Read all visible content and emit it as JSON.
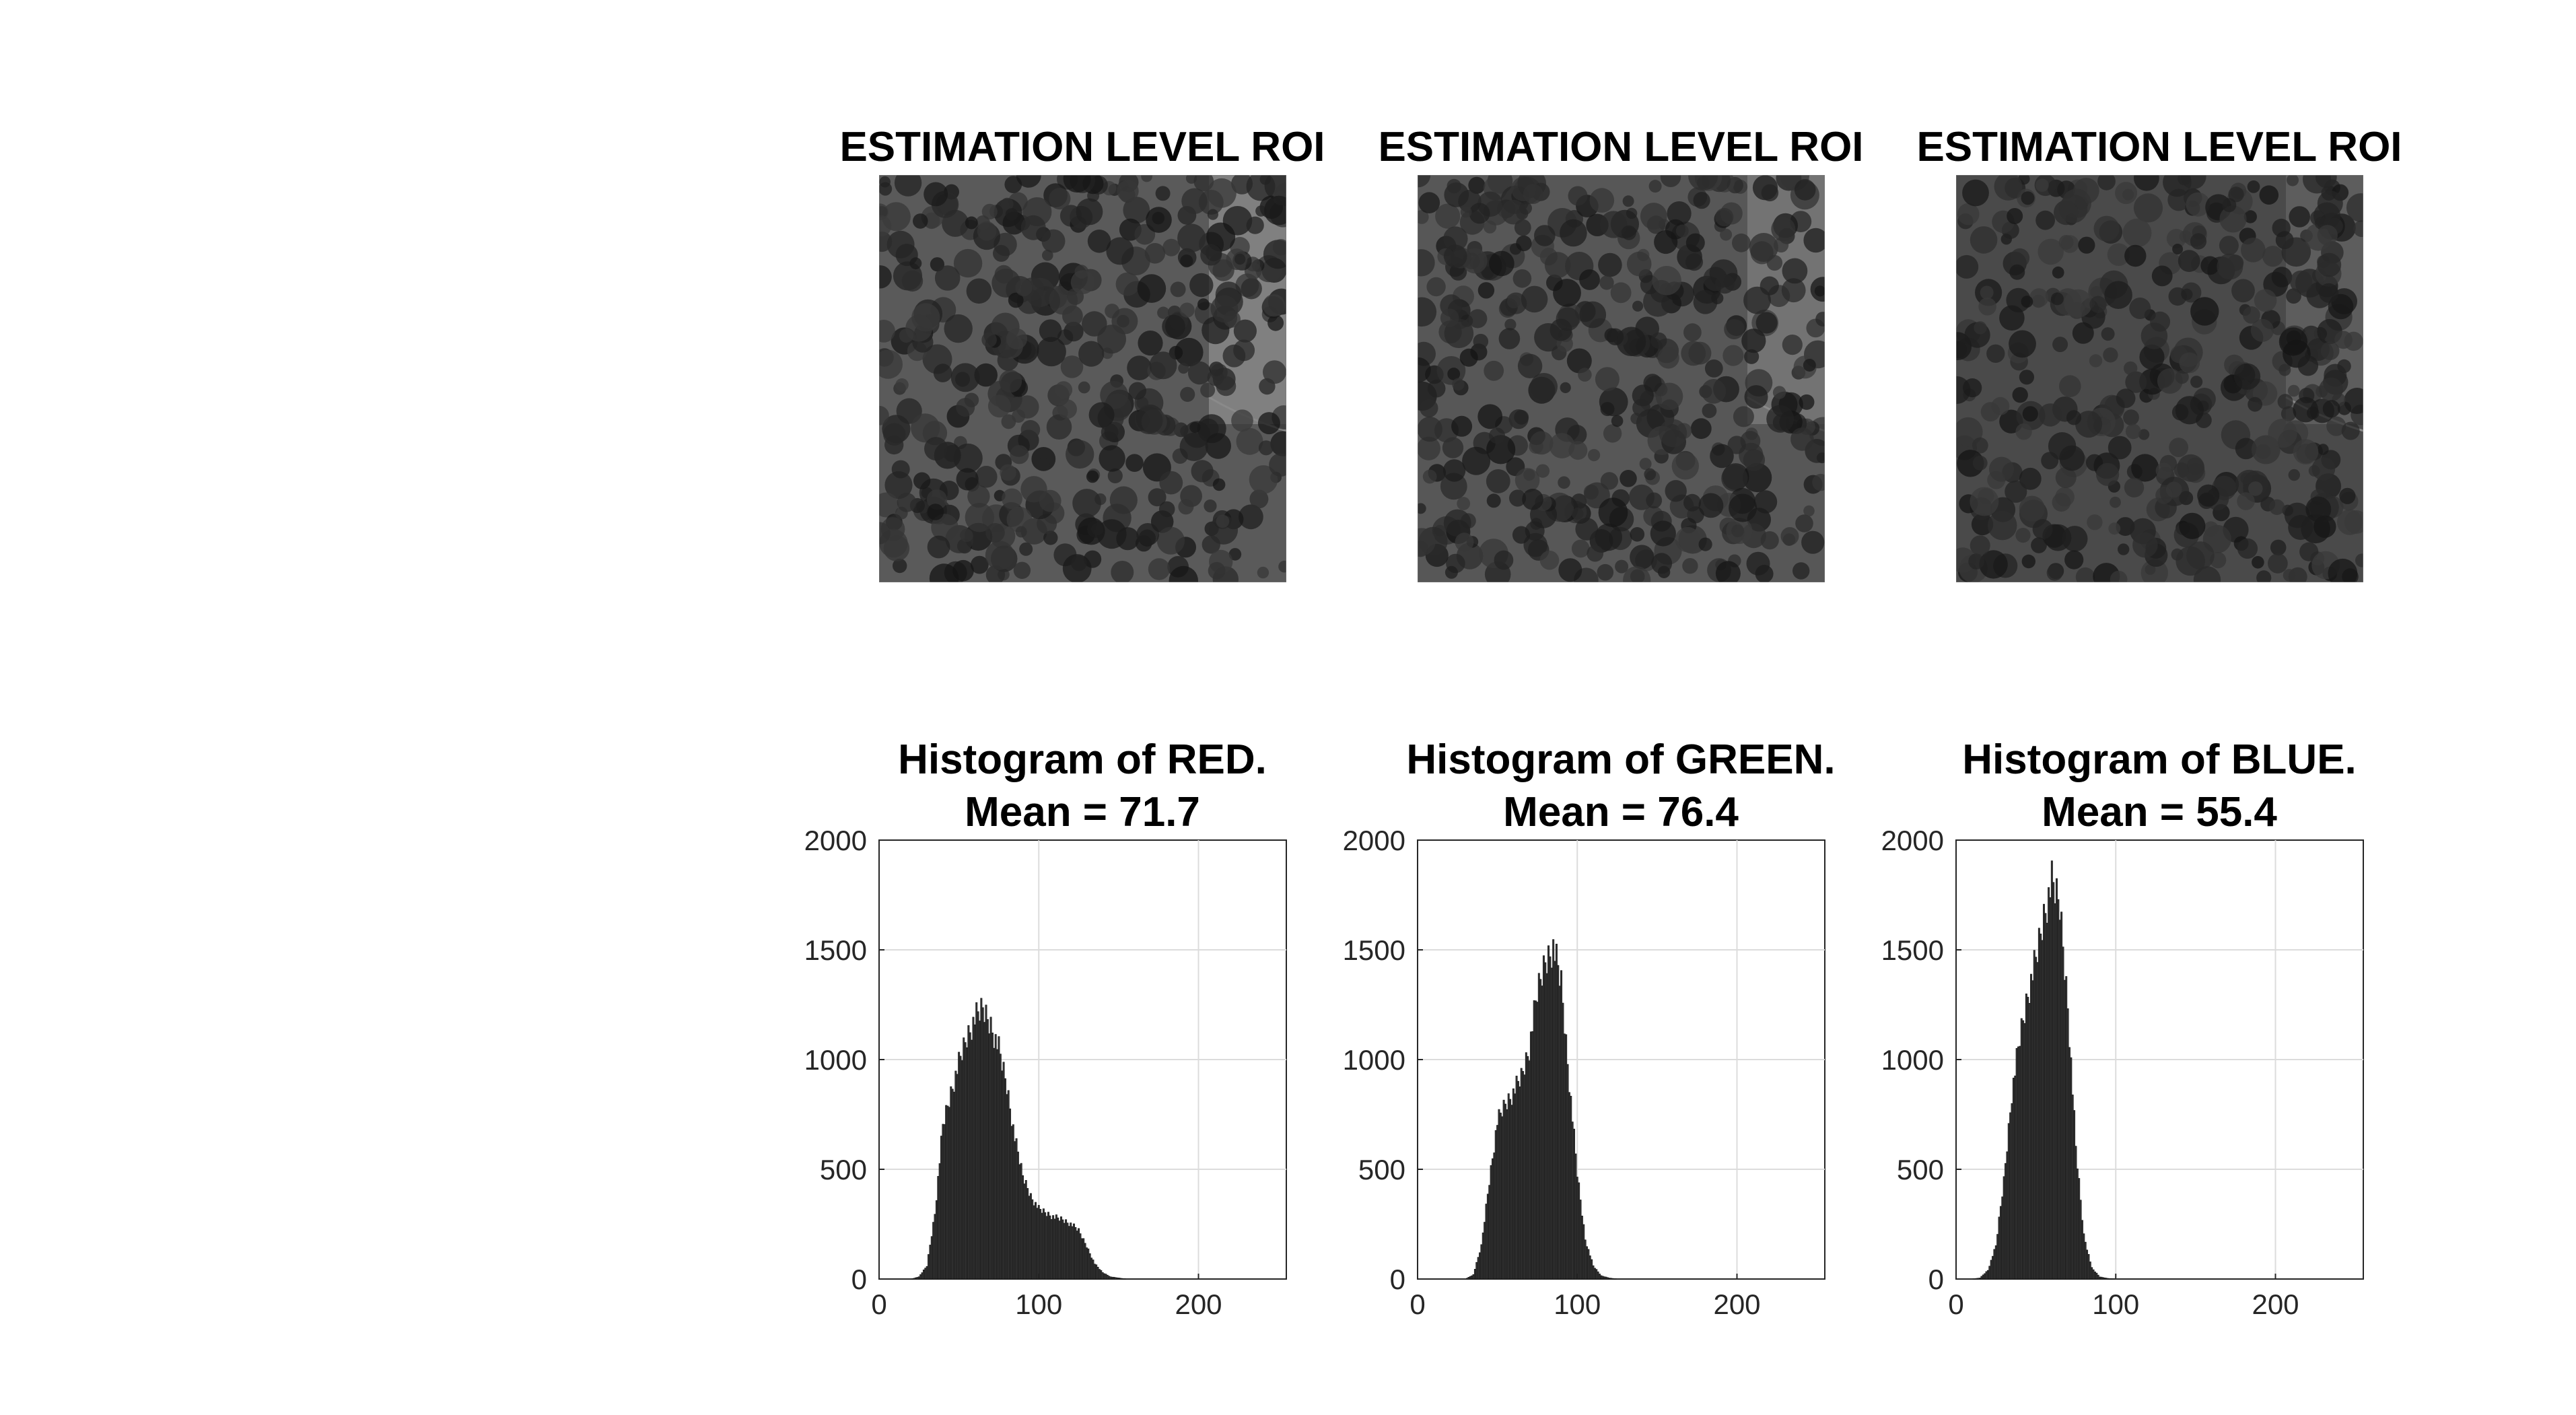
{
  "figure": {
    "roi_titles": [
      "ESTIMATION LEVEL ROI",
      "ESTIMATION LEVEL ROI",
      "ESTIMATION LEVEL ROI"
    ],
    "roi_icon": "aerial-photo-palm-trees"
  },
  "chart_data": [
    {
      "type": "bar",
      "title_line1": "Histogram of RED.",
      "title_line2": "Mean = 71.7",
      "xlim": [
        0,
        255
      ],
      "ylim": [
        0,
        2000
      ],
      "xticks": [
        0,
        100,
        200
      ],
      "yticks": [
        0,
        500,
        1000,
        1500,
        2000
      ],
      "grid": true,
      "color": "#333333",
      "x": [
        20,
        25,
        30,
        35,
        40,
        45,
        50,
        55,
        60,
        65,
        70,
        75,
        80,
        85,
        90,
        95,
        100,
        105,
        110,
        115,
        120,
        125,
        130,
        135,
        140,
        145,
        150,
        155,
        160
      ],
      "values": [
        0,
        10,
        60,
        300,
        700,
        850,
        980,
        1100,
        1180,
        1230,
        1160,
        1050,
        880,
        640,
        470,
        380,
        320,
        300,
        280,
        270,
        250,
        220,
        150,
        70,
        30,
        10,
        5,
        0,
        0
      ]
    },
    {
      "type": "bar",
      "title_line1": "Histogram of GREEN.",
      "title_line2": "Mean = 76.4",
      "xlim": [
        0,
        255
      ],
      "ylim": [
        0,
        2000
      ],
      "xticks": [
        0,
        100,
        200
      ],
      "yticks": [
        0,
        500,
        1000,
        1500,
        2000
      ],
      "grid": true,
      "color": "#333333",
      "x": [
        30,
        35,
        40,
        45,
        50,
        55,
        60,
        65,
        70,
        75,
        80,
        85,
        90,
        95,
        100,
        105,
        110,
        115,
        120,
        125
      ],
      "values": [
        0,
        20,
        150,
        450,
        720,
        800,
        850,
        920,
        1050,
        1300,
        1450,
        1520,
        1350,
        900,
        480,
        180,
        60,
        15,
        5,
        0
      ]
    },
    {
      "type": "bar",
      "title_line1": "Histogram of BLUE.",
      "title_line2": "Mean = 55.4",
      "xlim": [
        0,
        255
      ],
      "ylim": [
        0,
        2000
      ],
      "xticks": [
        0,
        100,
        200
      ],
      "yticks": [
        0,
        500,
        1000,
        1500,
        2000
      ],
      "grid": true,
      "color": "#333333",
      "x": [
        10,
        15,
        20,
        25,
        30,
        35,
        40,
        45,
        50,
        55,
        60,
        65,
        70,
        75,
        80,
        85,
        90,
        95,
        100
      ],
      "values": [
        0,
        5,
        40,
        150,
        450,
        850,
        1100,
        1300,
        1450,
        1650,
        1800,
        1700,
        1250,
        600,
        200,
        50,
        10,
        3,
        0
      ]
    }
  ]
}
